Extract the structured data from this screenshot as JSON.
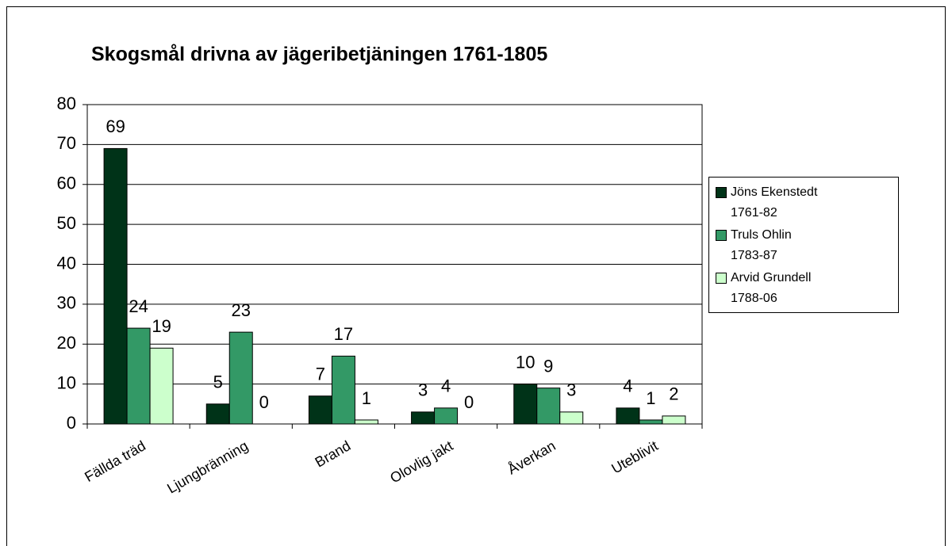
{
  "chart_data": {
    "type": "bar",
    "title": "Skogsmål drivna av jägeribetjäningen 1761-1805",
    "categories": [
      "Fällda träd",
      "Ljungbränning",
      "Brand",
      "Olovlig jakt",
      "Åverkan",
      "Uteblivit"
    ],
    "series": [
      {
        "name": "Jöns Ekenstedt 1761-82",
        "color": "#003318",
        "values": [
          69,
          5,
          7,
          3,
          10,
          4
        ]
      },
      {
        "name": "Truls Ohlin 1783-87",
        "color": "#339966",
        "values": [
          24,
          23,
          17,
          4,
          9,
          1
        ]
      },
      {
        "name": "Arvid Grundell 1788-06",
        "color": "#ccffcc",
        "values": [
          19,
          0,
          1,
          0,
          3,
          2
        ]
      }
    ],
    "ylim": [
      0,
      80
    ],
    "yticks": [
      0,
      10,
      20,
      30,
      40,
      50,
      60,
      70,
      80
    ],
    "grid": true,
    "legend": "right"
  }
}
